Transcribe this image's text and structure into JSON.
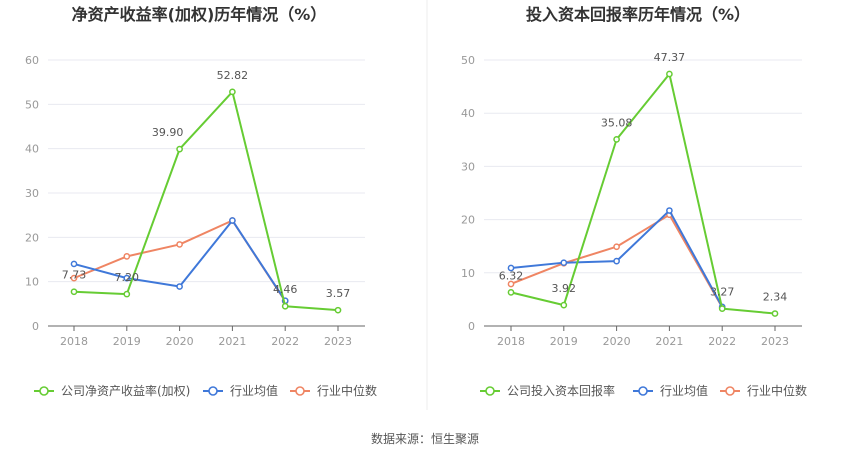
{
  "source_text": "数据来源：恒生聚源",
  "colors": {
    "company": "#66cc33",
    "industry_avg": "#3f78d9",
    "industry_median": "#ef8563",
    "grid": "#e8eaf0",
    "axis": "#666666"
  },
  "chart_data": [
    {
      "type": "line",
      "title": "净资产收益率(加权)历年情况（%）",
      "categories": [
        "2018",
        "2019",
        "2020",
        "2021",
        "2022",
        "2023"
      ],
      "ylim": [
        0,
        60
      ],
      "yticks": [
        "0",
        "10",
        "20",
        "30",
        "40",
        "50",
        "60"
      ],
      "grid": true,
      "legend_position": "bottom",
      "series": [
        {
          "name": "公司净资产收益率(加权)",
          "color_key": "company",
          "values": [
            7.73,
            7.2,
            39.9,
            52.82,
            4.46,
            3.57
          ],
          "labels": [
            "7.73",
            "7.20",
            "39.90",
            "52.82",
            "4.46",
            "3.57"
          ]
        },
        {
          "name": "行业均值",
          "color_key": "industry_avg",
          "values": [
            14.0,
            10.8,
            8.9,
            23.8,
            5.7,
            null
          ]
        },
        {
          "name": "行业中位数",
          "color_key": "industry_median",
          "values": [
            10.8,
            15.7,
            18.4,
            23.8,
            5.6,
            null
          ]
        }
      ]
    },
    {
      "type": "line",
      "title": "投入资本回报率历年情况（%）",
      "categories": [
        "2018",
        "2019",
        "2020",
        "2021",
        "2022",
        "2023"
      ],
      "ylim": [
        0,
        50
      ],
      "yticks": [
        "0",
        "10",
        "20",
        "30",
        "40",
        "50"
      ],
      "grid": true,
      "legend_position": "bottom",
      "series": [
        {
          "name": "公司投入资本回报率",
          "color_key": "company",
          "values": [
            6.32,
            3.92,
            35.08,
            47.37,
            3.27,
            2.34
          ],
          "labels": [
            "6.32",
            "3.92",
            "35.08",
            "47.37",
            "3.27",
            "2.34"
          ]
        },
        {
          "name": "行业均值",
          "color_key": "industry_avg",
          "values": [
            10.9,
            11.9,
            12.2,
            21.7,
            3.6,
            null
          ]
        },
        {
          "name": "行业中位数",
          "color_key": "industry_median",
          "values": [
            7.9,
            11.8,
            14.9,
            20.9,
            3.5,
            null
          ]
        }
      ]
    }
  ]
}
